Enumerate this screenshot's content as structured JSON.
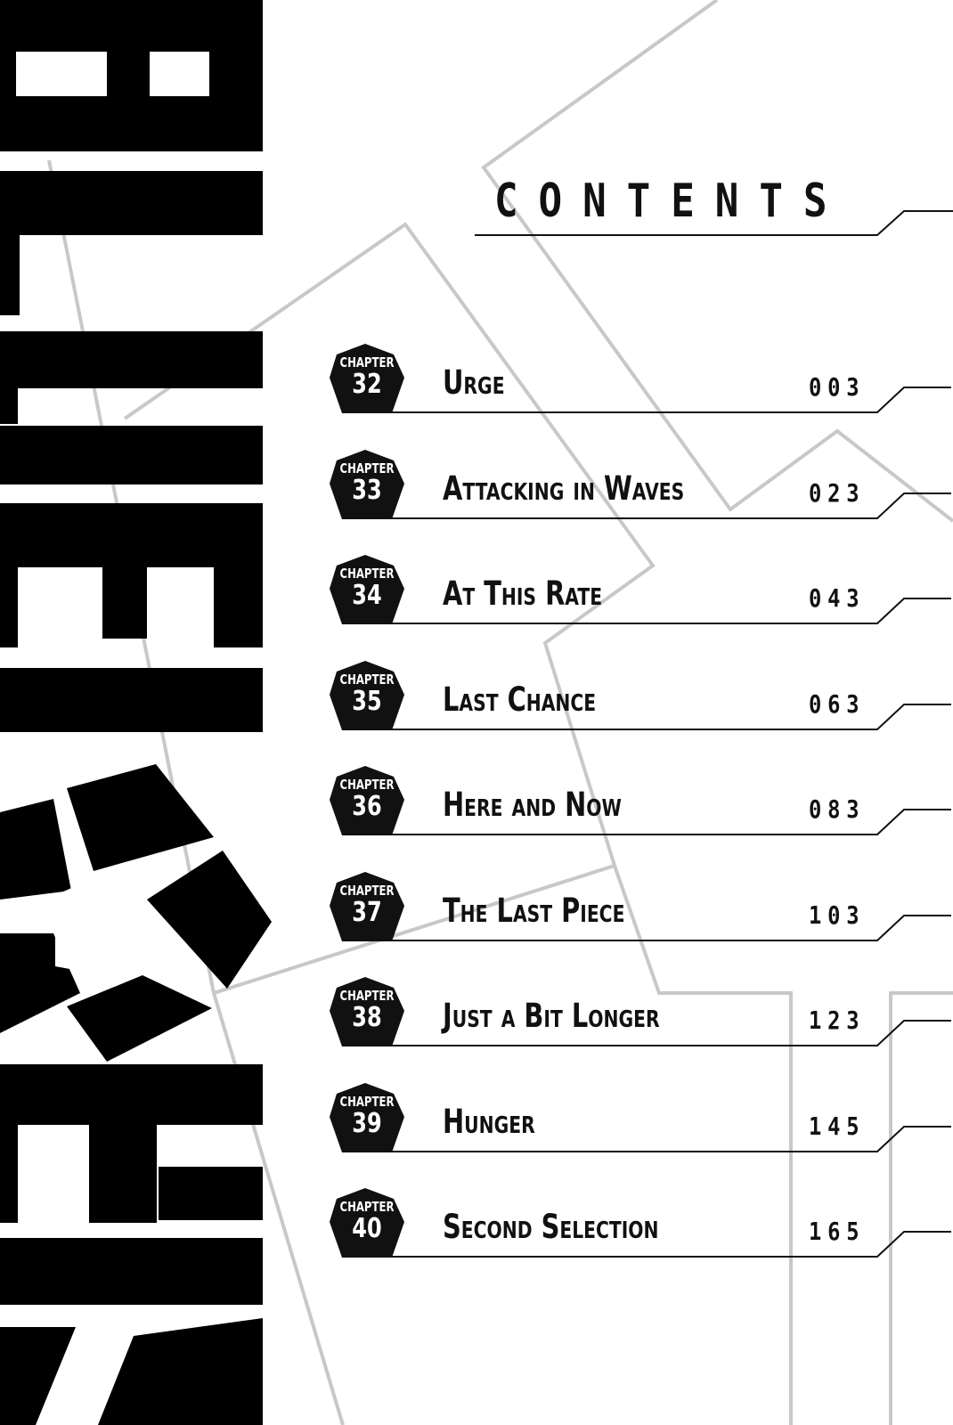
{
  "heading": "CONTENTS",
  "logo_text": "BLUE LOCK",
  "chapter_label": "CHAPTER",
  "chapters": [
    {
      "number": "32",
      "title": "Urge",
      "page": "003"
    },
    {
      "number": "33",
      "title": "Attacking in Waves",
      "page": "023"
    },
    {
      "number": "34",
      "title": "At This Rate",
      "page": "043"
    },
    {
      "number": "35",
      "title": "Last Chance",
      "page": "063"
    },
    {
      "number": "36",
      "title": "Here and Now",
      "page": "083"
    },
    {
      "number": "37",
      "title": "The Last Piece",
      "page": "103"
    },
    {
      "number": "38",
      "title": "Just a Bit Longer",
      "page": "123"
    },
    {
      "number": "39",
      "title": "Hunger",
      "page": "145"
    },
    {
      "number": "40",
      "title": "Second Selection",
      "page": "165"
    }
  ],
  "colors": {
    "ink": "#111111",
    "background_lines": "#c8c8c8",
    "paper": "#ffffff"
  }
}
